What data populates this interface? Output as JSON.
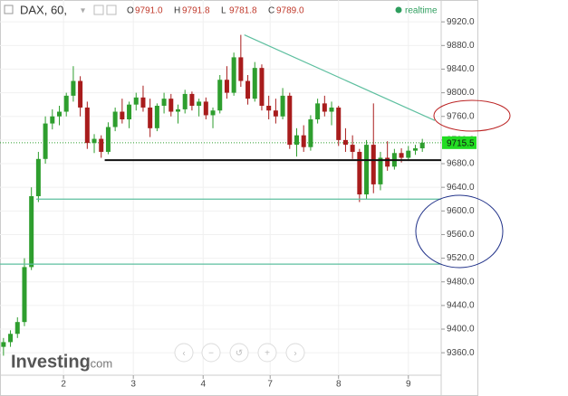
{
  "chart_data": {
    "type": "candlestick",
    "symbol": "DAX, 60,",
    "ohlc_labels": [
      {
        "label": "O",
        "value": "9791.0"
      },
      {
        "label": "H",
        "value": "9791.8"
      },
      {
        "label": "L",
        "value": "9781.8"
      },
      {
        "label": "C",
        "value": "9789.0"
      }
    ],
    "status": "realtime",
    "watermark": [
      "Investing",
      ".com"
    ],
    "x": [
      0,
      1,
      2,
      3,
      4,
      5,
      6,
      7,
      8,
      9,
      10,
      11,
      12,
      13,
      14,
      15,
      16,
      17,
      18,
      19,
      20,
      21,
      22,
      23,
      24,
      25,
      26,
      27,
      28,
      29,
      30,
      31,
      32,
      33,
      34,
      35,
      36,
      37,
      38,
      39,
      40,
      41,
      42,
      43,
      44,
      45,
      46,
      47,
      48,
      49,
      50,
      51,
      52,
      53,
      54,
      55,
      56,
      57,
      58,
      59,
      60
    ],
    "open": [
      9370,
      9378,
      9392,
      9412,
      9505,
      9625,
      9688,
      9748,
      9760,
      9768,
      9795,
      9820,
      9775,
      9715,
      9722,
      9700,
      9742,
      9768,
      9755,
      9780,
      9792,
      9775,
      9740,
      9778,
      9790,
      9768,
      9772,
      9798,
      9778,
      9785,
      9762,
      9770,
      9822,
      9800,
      9860,
      9820,
      9790,
      9842,
      9778,
      9770,
      9760,
      9795,
      9712,
      9728,
      9708,
      9755,
      9782,
      9768,
      9775,
      9720,
      9712,
      9700,
      9628,
      9712,
      9645,
      9690,
      9675,
      9698,
      9690,
      9702,
      9706
    ],
    "high": [
      9385,
      9398,
      9420,
      9520,
      9640,
      9700,
      9760,
      9772,
      9778,
      9800,
      9845,
      9828,
      9785,
      9730,
      9728,
      9750,
      9775,
      9790,
      9785,
      9800,
      9812,
      9790,
      9782,
      9800,
      9798,
      9780,
      9805,
      9802,
      9790,
      9792,
      9775,
      9830,
      9845,
      9868,
      9898,
      9830,
      9852,
      9848,
      9795,
      9790,
      9808,
      9800,
      9740,
      9745,
      9762,
      9790,
      9795,
      9785,
      9778,
      9740,
      9728,
      9705,
      9720,
      9782,
      9700,
      9718,
      9705,
      9706,
      9710,
      9712,
      9722
    ],
    "low": [
      9355,
      9370,
      9385,
      9405,
      9500,
      9615,
      9680,
      9738,
      9745,
      9760,
      9785,
      9760,
      9705,
      9698,
      9690,
      9696,
      9735,
      9748,
      9740,
      9770,
      9768,
      9725,
      9735,
      9765,
      9760,
      9748,
      9765,
      9770,
      9760,
      9755,
      9740,
      9765,
      9790,
      9795,
      9810,
      9780,
      9785,
      9770,
      9755,
      9748,
      9755,
      9705,
      9692,
      9700,
      9702,
      9748,
      9760,
      9745,
      9710,
      9700,
      9688,
      9615,
      9620,
      9630,
      9635,
      9668,
      9670,
      9682,
      9685,
      9695,
      9700
    ],
    "close": [
      9378,
      9392,
      9412,
      9505,
      9625,
      9688,
      9748,
      9760,
      9768,
      9795,
      9820,
      9775,
      9715,
      9722,
      9700,
      9742,
      9768,
      9755,
      9780,
      9792,
      9775,
      9740,
      9778,
      9790,
      9768,
      9772,
      9798,
      9778,
      9785,
      9762,
      9770,
      9822,
      9800,
      9860,
      9820,
      9790,
      9842,
      9778,
      9770,
      9760,
      9795,
      9712,
      9728,
      9708,
      9755,
      9782,
      9768,
      9775,
      9720,
      9712,
      9700,
      9628,
      9712,
      9645,
      9690,
      9675,
      9698,
      9690,
      9702,
      9706,
      9715.5
    ],
    "up_color": "#2e9e2e",
    "down_color": "#a81c1c",
    "last_price": 9715.5,
    "last_price_label": "9715.5",
    "xlim": [
      -0.5,
      62.7
    ],
    "ylim": [
      9322,
      9957
    ],
    "xticks": [
      {
        "value": 8.6,
        "label": "2"
      },
      {
        "value": 18.6,
        "label": "3"
      },
      {
        "value": 28.6,
        "label": "4"
      },
      {
        "value": 38.2,
        "label": "7"
      },
      {
        "value": 48,
        "label": "8"
      },
      {
        "value": 58,
        "label": "9"
      }
    ],
    "yticks": [
      {
        "value": 9360,
        "label": "9360.0"
      },
      {
        "value": 9400,
        "label": "9400.0"
      },
      {
        "value": 9440,
        "label": "9440.0"
      },
      {
        "value": 9480,
        "label": "9480.0"
      },
      {
        "value": 9520,
        "label": "9520.0"
      },
      {
        "value": 9560,
        "label": "9560.0"
      },
      {
        "value": 9600,
        "label": "9600.0"
      },
      {
        "value": 9640,
        "label": "9640.0"
      },
      {
        "value": 9680,
        "label": "9680.0"
      },
      {
        "value": 9720,
        "label": "9720.0"
      },
      {
        "value": 9760,
        "label": "9760.0"
      },
      {
        "value": 9800,
        "label": "9800.0"
      },
      {
        "value": 9840,
        "label": "9840.0"
      },
      {
        "value": 9880,
        "label": "9880.0"
      },
      {
        "value": 9920,
        "label": "9920.0"
      }
    ],
    "grid": true,
    "lines": [
      {
        "x": [
          34.5,
          61.8
        ],
        "y": [
          9898,
          9753
        ],
        "color": "#5dbf9f"
      },
      {
        "x": [
          14.5,
          62.7
        ],
        "y": [
          9686,
          9686
        ],
        "color": "#111111"
      },
      {
        "x": [
          4.7,
          62.7
        ],
        "y": [
          9620,
          9620
        ],
        "color": "#5dbf9f"
      },
      {
        "x": [
          -0.5,
          62.7
        ],
        "y": [
          9510,
          9510
        ],
        "color": "#5dbf9f"
      }
    ]
  }
}
